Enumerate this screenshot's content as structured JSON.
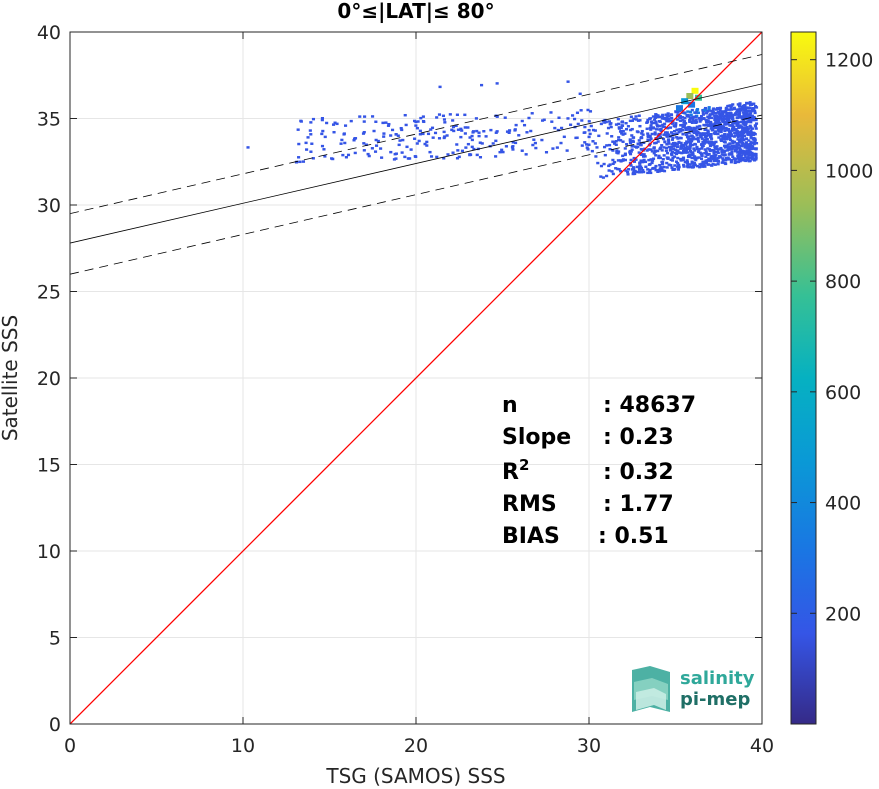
{
  "chart_data": {
    "type": "heatmap",
    "title": "0°≤|LAT|≤ 80°",
    "xlabel": "TSG (SAMOS) SSS",
    "ylabel": "Satellite SSS",
    "xlim": [
      0,
      40
    ],
    "ylim": [
      0,
      40
    ],
    "xticks": [
      "0",
      "10",
      "20",
      "30",
      "40"
    ],
    "yticks": [
      "0",
      "5",
      "10",
      "15",
      "20",
      "25",
      "30",
      "35",
      "40"
    ],
    "grid": true,
    "colorbar": {
      "range": [
        0,
        1250
      ],
      "ticks": [
        "200",
        "400",
        "600",
        "800",
        "1000",
        "1200"
      ],
      "colormap": "parula"
    },
    "lines": [
      {
        "kind": "one-to-one",
        "color": "#ff0000",
        "x": [
          0,
          40
        ],
        "y": [
          0,
          40
        ]
      },
      {
        "kind": "regression",
        "color": "#000000",
        "style": "solid",
        "x": [
          0,
          40
        ],
        "y": [
          27.8,
          37.0
        ]
      },
      {
        "kind": "upper-bound",
        "color": "#000000",
        "style": "dashed",
        "x": [
          0,
          40
        ],
        "y": [
          29.5,
          38.7
        ]
      },
      {
        "kind": "lower-bound",
        "color": "#000000",
        "style": "dashed",
        "x": [
          0,
          40
        ],
        "y": [
          26.0,
          35.2
        ]
      }
    ],
    "density_cells": [
      {
        "x": 36.1,
        "y": 36.6,
        "count": 1240
      },
      {
        "x": 35.8,
        "y": 36.3,
        "count": 900
      },
      {
        "x": 36.3,
        "y": 36.2,
        "count": 700
      },
      {
        "x": 35.5,
        "y": 36.0,
        "count": 420
      },
      {
        "x": 35.9,
        "y": 35.8,
        "count": 300
      },
      {
        "x": 35.2,
        "y": 35.6,
        "count": 220
      }
    ],
    "stats": [
      {
        "label": "n",
        "value": ": 48637"
      },
      {
        "label": "Slope",
        "value": ": 0.23"
      },
      {
        "label": "R",
        "sup": "2",
        "value": ": 0.32"
      },
      {
        "label": "RMS",
        "value": ": 1.77"
      },
      {
        "label": "BIAS",
        "value": ": 0.51"
      }
    ]
  },
  "logo": {
    "line1": "salinity",
    "line2": "pi-mep"
  }
}
